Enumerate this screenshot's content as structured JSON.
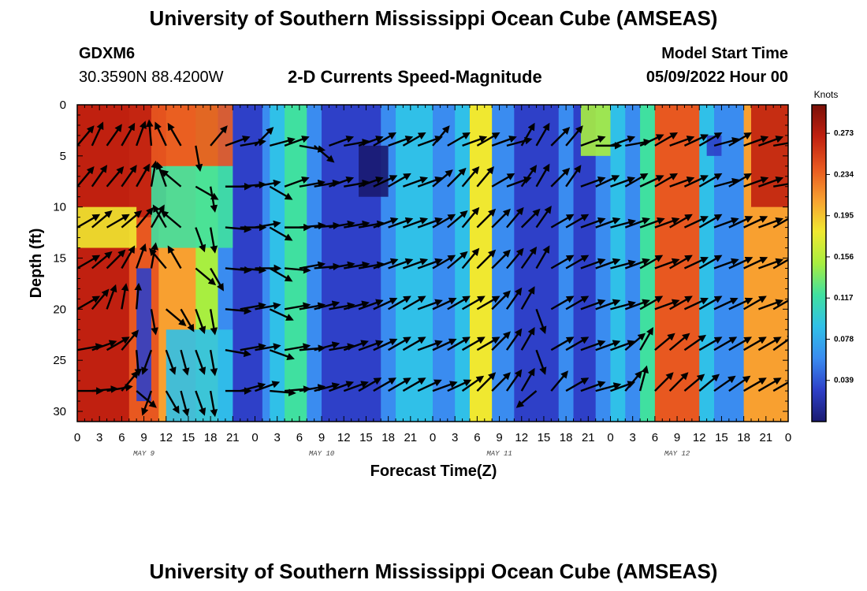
{
  "page": {
    "title_top": "University of Southern Mississippi Ocean Cube (AMSEAS)",
    "title_bottom": "University of Southern Mississippi Ocean Cube (AMSEAS)",
    "station_id": "GDXM6",
    "station_coords": "30.3590N  88.4200W",
    "model_start_label": "Model Start Time",
    "model_start_value": "05/09/2022 Hour 00"
  },
  "chart_data": {
    "type": "heatmap",
    "title": "2-D Currents Speed-Magnitude",
    "xlabel": "Forecast Time(Z)",
    "ylabel": "Depth (ft)",
    "x_tick_labels": [
      "0",
      "3",
      "6",
      "9",
      "12",
      "15",
      "18",
      "21",
      "0",
      "3",
      "6",
      "9",
      "12",
      "15",
      "18",
      "21",
      "0",
      "3",
      "6",
      "9",
      "12",
      "15",
      "18",
      "21",
      "0",
      "3",
      "6",
      "9",
      "12",
      "15",
      "18",
      "21",
      "0"
    ],
    "day_labels": [
      "MAY 9",
      "MAY 10",
      "MAY 11",
      "MAY 12"
    ],
    "xlim_hours": [
      0,
      96
    ],
    "ylim_ft": [
      0,
      31
    ],
    "y_inverted": true,
    "y_ticks": [
      0,
      5,
      10,
      15,
      20,
      25,
      30
    ],
    "colorbar": {
      "label": "Knots",
      "ticks": [
        "0.273",
        "0.234",
        "0.195",
        "0.156",
        "0.117",
        "0.078",
        "0.039"
      ],
      "tick_values": [
        0.273,
        0.234,
        0.195,
        0.156,
        0.117,
        0.078,
        0.039
      ],
      "range": [
        0,
        0.3
      ],
      "colors": [
        "#1a1a70",
        "#2e40c8",
        "#3a8cf0",
        "#30c0e8",
        "#40e0a0",
        "#a8ee40",
        "#f0e830",
        "#f8a030",
        "#e85820",
        "#c02010",
        "#7a1008"
      ]
    },
    "speed_bands": [
      {
        "hours": [
          0,
          2
        ],
        "speed": 0.26
      },
      {
        "hours": [
          2,
          7
        ],
        "speed": 0.28
      },
      {
        "hours": [
          7,
          11
        ],
        "speed": 0.24
      },
      {
        "hours": [
          11,
          16
        ],
        "speed": 0.2
      },
      {
        "hours": [
          16,
          19
        ],
        "speed": 0.15
      },
      {
        "hours": [
          19,
          21
        ],
        "speed": 0.05
      },
      {
        "hours": [
          21,
          23
        ],
        "speed": 0.02
      },
      {
        "hours": [
          23,
          25
        ],
        "speed": 0.015
      },
      {
        "hours": [
          25,
          26
        ],
        "speed": 0.05
      },
      {
        "hours": [
          26,
          28
        ],
        "speed": 0.075
      },
      {
        "hours": [
          28,
          31
        ],
        "speed": 0.12
      },
      {
        "hours": [
          31,
          33
        ],
        "speed": 0.06
      },
      {
        "hours": [
          33,
          36
        ],
        "speed": 0.03
      },
      {
        "hours": [
          36,
          39
        ],
        "speed": 0.025
      },
      {
        "hours": [
          39,
          41
        ],
        "speed": 0.04
      },
      {
        "hours": [
          41,
          43
        ],
        "speed": 0.06
      },
      {
        "hours": [
          43,
          46
        ],
        "speed": 0.075
      },
      {
        "hours": [
          46,
          48
        ],
        "speed": 0.085
      },
      {
        "hours": [
          48,
          51
        ],
        "speed": 0.065
      },
      {
        "hours": [
          51,
          53
        ],
        "speed": 0.1
      },
      {
        "hours": [
          53,
          56
        ],
        "speed": 0.18
      },
      {
        "hours": [
          56,
          59
        ],
        "speed": 0.07
      },
      {
        "hours": [
          59,
          61
        ],
        "speed": 0.035
      },
      {
        "hours": [
          61,
          63
        ],
        "speed": 0.018
      },
      {
        "hours": [
          63,
          65
        ],
        "speed": 0.02
      },
      {
        "hours": [
          65,
          67
        ],
        "speed": 0.045
      },
      {
        "hours": [
          67,
          70
        ],
        "speed": 0.04
      },
      {
        "hours": [
          70,
          72
        ],
        "speed": 0.07
      },
      {
        "hours": [
          72,
          74
        ],
        "speed": 0.095
      },
      {
        "hours": [
          74,
          76
        ],
        "speed": 0.06
      },
      {
        "hours": [
          76,
          78
        ],
        "speed": 0.12
      },
      {
        "hours": [
          78,
          84
        ],
        "speed": 0.25
      },
      {
        "hours": [
          84,
          86
        ],
        "speed": 0.09
      },
      {
        "hours": [
          86,
          88
        ],
        "speed": 0.045
      },
      {
        "hours": [
          88,
          90
        ],
        "speed": 0.07
      },
      {
        "hours": [
          90,
          96
        ],
        "speed": 0.22
      }
    ],
    "speed_patches": [
      {
        "hours": [
          0,
          12
        ],
        "depth_ft": [
          0,
          11
        ],
        "speed": 0.28
      },
      {
        "hours": [
          10,
          21
        ],
        "depth_ft": [
          0,
          6
        ],
        "speed": 0.23
      },
      {
        "hours": [
          0,
          8
        ],
        "depth_ft": [
          10,
          14
        ],
        "speed": 0.18
      },
      {
        "hours": [
          8,
          10
        ],
        "depth_ft": [
          16,
          29
        ],
        "speed": 0.015
      },
      {
        "hours": [
          12,
          21
        ],
        "depth_ft": [
          22,
          31
        ],
        "speed": 0.1
      },
      {
        "hours": [
          10,
          21
        ],
        "depth_ft": [
          6,
          14
        ],
        "speed": 0.12
      },
      {
        "hours": [
          38,
          42
        ],
        "depth_ft": [
          4,
          9
        ],
        "speed": 0.01
      },
      {
        "hours": [
          68,
          72
        ],
        "depth_ft": [
          0,
          5
        ],
        "speed": 0.16
      },
      {
        "hours": [
          91,
          96
        ],
        "depth_ft": [
          0,
          10
        ],
        "speed": 0.28
      },
      {
        "hours": [
          85,
          87
        ],
        "depth_ft": [
          3,
          5
        ],
        "speed": 0.015
      }
    ],
    "vector_depths_ft": [
      4,
      8,
      12,
      16,
      20,
      24,
      28
    ],
    "vector_hours": [
      0,
      2,
      4,
      6,
      8,
      10,
      12,
      14,
      16,
      18,
      20,
      22,
      24,
      26,
      28,
      30,
      32,
      34,
      36,
      38,
      40,
      42,
      44,
      46,
      48,
      50,
      52,
      54,
      56,
      58,
      60,
      62,
      64,
      66,
      68,
      70,
      72,
      74,
      76,
      78,
      80,
      82,
      84,
      86,
      88,
      90,
      92,
      94,
      96
    ],
    "vector_directions_deg": [
      [
        40,
        25,
        35,
        30,
        20,
        -5,
        -25,
        -30,
        170,
        40,
        70,
        80,
        45,
        75,
        70,
        100,
        130,
        70,
        80,
        70,
        60,
        70,
        60,
        70,
        40,
        60,
        70,
        60,
        70,
        75,
        30,
        30,
        45,
        40,
        70,
        90,
        70,
        80,
        65,
        60,
        70,
        65,
        60,
        75,
        60,
        70,
        70,
        80,
        40
      ],
      [
        40,
        35,
        40,
        35,
        30,
        10,
        -20,
        -50,
        120,
        170,
        90,
        85,
        80,
        120,
        70,
        80,
        80,
        70,
        80,
        70,
        65,
        60,
        70,
        70,
        50,
        45,
        40,
        40,
        60,
        70,
        35,
        30,
        45,
        35,
        70,
        65,
        70,
        60,
        65,
        60,
        70,
        65,
        60,
        75,
        60,
        70,
        70,
        80,
        40
      ],
      [
        60,
        50,
        60,
        50,
        40,
        30,
        -30,
        -50,
        160,
        170,
        95,
        90,
        80,
        120,
        90,
        85,
        85,
        80,
        80,
        80,
        70,
        70,
        70,
        70,
        60,
        50,
        40,
        45,
        45,
        40,
        45,
        35,
        60,
        60,
        70,
        70,
        75,
        70,
        70,
        70,
        60,
        65,
        60,
        70,
        65,
        65,
        70,
        60,
        50
      ],
      [
        60,
        50,
        45,
        30,
        20,
        10,
        -40,
        -30,
        130,
        150,
        95,
        95,
        90,
        120,
        95,
        80,
        85,
        80,
        80,
        80,
        70,
        70,
        70,
        70,
        60,
        50,
        40,
        45,
        45,
        40,
        35,
        30,
        60,
        60,
        70,
        70,
        75,
        70,
        60,
        70,
        60,
        65,
        60,
        70,
        65,
        65,
        70,
        60,
        50
      ],
      [
        60,
        40,
        20,
        10,
        5,
        170,
        130,
        150,
        160,
        170,
        95,
        80,
        80,
        115,
        80,
        80,
        75,
        80,
        75,
        70,
        65,
        60,
        60,
        70,
        65,
        60,
        60,
        60,
        45,
        35,
        30,
        160,
        60,
        60,
        70,
        70,
        75,
        70,
        60,
        70,
        60,
        65,
        60,
        65,
        65,
        60,
        70,
        60,
        55
      ],
      [
        80,
        70,
        60,
        40,
        175,
        -160,
        160,
        165,
        160,
        170,
        100,
        80,
        80,
        110,
        80,
        85,
        75,
        80,
        70,
        70,
        65,
        60,
        60,
        70,
        65,
        60,
        60,
        60,
        45,
        35,
        30,
        160,
        60,
        60,
        70,
        70,
        70,
        50,
        30,
        50,
        50,
        55,
        60,
        60,
        60,
        60,
        60,
        55,
        60
      ],
      [
        90,
        85,
        80,
        40,
        130,
        -160,
        150,
        165,
        160,
        170,
        90,
        75,
        70,
        95,
        85,
        80,
        75,
        70,
        70,
        60,
        60,
        60,
        60,
        65,
        70,
        65,
        55,
        45,
        45,
        35,
        30,
        -130,
        40,
        60,
        70,
        75,
        70,
        40,
        15,
        45,
        45,
        50,
        50,
        55,
        55,
        60,
        60,
        60,
        50
      ]
    ]
  }
}
